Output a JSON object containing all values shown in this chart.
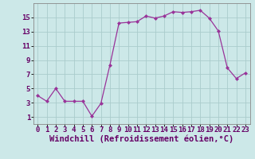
{
  "x": [
    0,
    1,
    2,
    3,
    4,
    5,
    6,
    7,
    8,
    9,
    10,
    11,
    12,
    13,
    14,
    15,
    16,
    17,
    18,
    19,
    20,
    21,
    22,
    23
  ],
  "y": [
    4.0,
    3.2,
    5.0,
    3.2,
    3.2,
    3.2,
    1.1,
    2.9,
    8.3,
    14.2,
    14.3,
    14.4,
    15.2,
    14.9,
    15.2,
    15.8,
    15.7,
    15.8,
    16.0,
    14.9,
    13.1,
    7.9,
    6.4,
    7.2
  ],
  "line_color": "#993399",
  "marker": "D",
  "marker_size": 2.0,
  "bg_color": "#cce8e8",
  "grid_color": "#aacccc",
  "xlabel": "Windchill (Refroidissement éolien,°C)",
  "xlabel_fontsize": 7.5,
  "ytick_values": [
    1,
    3,
    5,
    7,
    9,
    11,
    13,
    15
  ],
  "xtick_values": [
    0,
    1,
    2,
    3,
    4,
    5,
    6,
    7,
    8,
    9,
    10,
    11,
    12,
    13,
    14,
    15,
    16,
    17,
    18,
    19,
    20,
    21,
    22,
    23
  ],
  "ylim": [
    0,
    17
  ],
  "xlim": [
    -0.5,
    23.5
  ],
  "tick_fontsize": 6.5,
  "xlabel_color": "#660066",
  "line_width": 0.9
}
